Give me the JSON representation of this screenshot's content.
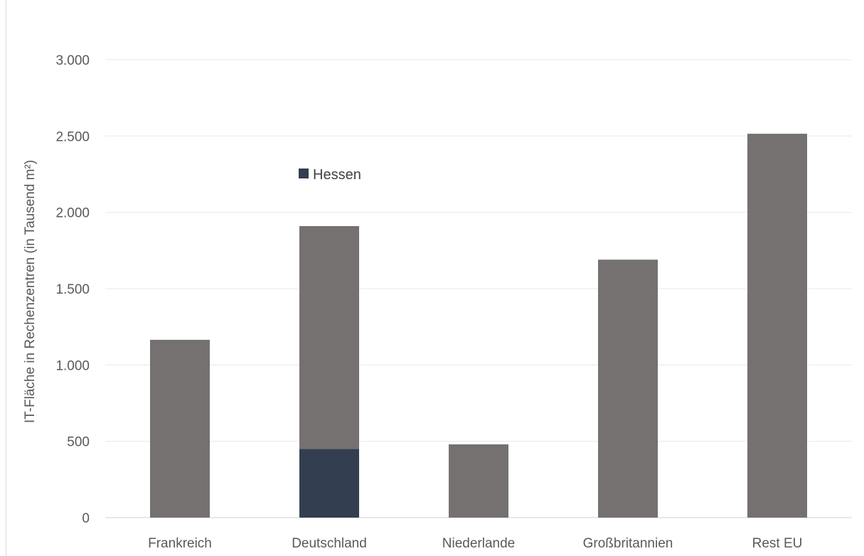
{
  "chart_data": {
    "type": "bar",
    "stacked": true,
    "categories": [
      "Frankreich",
      "Deutschland",
      "Niederlande",
      "Großbritannien",
      "Rest EU"
    ],
    "series": [
      {
        "name": "Hessen",
        "values": [
          0,
          450,
          0,
          0,
          0
        ],
        "color": "#333f50"
      },
      {
        "values": [
          1165,
          1460,
          480,
          1690,
          2515
        ],
        "color": "#757171"
      }
    ],
    "ylabel": "IT-Fläche in Rechenzentren  (in Tausend m²)",
    "xlabel": "",
    "ylim": [
      0,
      3000
    ],
    "yticks": [
      0,
      500,
      1000,
      1500,
      2000,
      2500,
      3000
    ],
    "ytick_labels": [
      "0",
      "500",
      "1.000",
      "1.500",
      "2.000",
      "2.500",
      "3.000"
    ],
    "grid": true,
    "gridline_color": "#eeeeee",
    "legend_position": "inside-top-left"
  }
}
